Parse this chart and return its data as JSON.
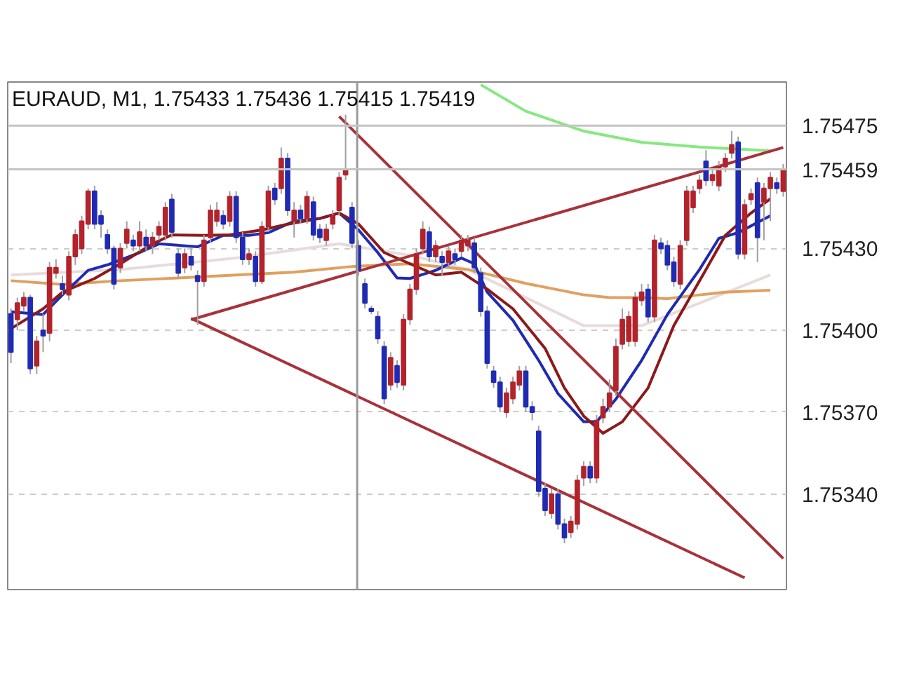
{
  "chart_data": {
    "type": "candlestick",
    "title": "EURAUD, M1, 1.75433 1.75436 1.75415 1.75419",
    "categories": [
      null,
      null,
      null,
      null,
      null,
      null,
      null,
      null,
      null,
      null,
      null,
      null,
      null,
      null,
      null,
      null,
      null,
      null,
      null,
      null,
      null,
      null,
      null,
      null,
      null,
      null,
      null,
      null,
      null,
      null,
      null,
      null,
      null,
      null,
      null,
      null,
      null,
      null,
      null,
      null,
      null,
      null,
      null,
      null,
      null,
      null,
      null,
      null,
      null,
      null,
      null,
      null,
      null,
      null,
      null,
      null,
      null,
      null,
      null,
      null,
      null,
      null,
      null,
      null,
      null,
      null,
      null,
      null,
      null,
      null,
      null,
      null,
      null,
      null,
      null,
      null,
      null,
      null,
      null,
      null,
      null,
      null,
      null,
      null,
      null,
      null,
      null,
      null,
      null,
      null,
      null,
      null,
      null,
      null,
      null,
      null,
      null,
      null,
      null,
      null,
      null,
      null,
      null,
      null,
      null,
      null,
      null,
      null,
      null,
      null,
      null,
      null,
      null,
      null,
      null,
      null,
      null,
      null,
      null,
      null,
      null
    ],
    "ohlc": [
      [
        1.75406,
        1.75408,
        1.75388,
        1.75392
      ],
      [
        1.75404,
        1.75412,
        1.754,
        1.7541
      ],
      [
        1.75409,
        1.75414,
        1.75407,
        1.75412
      ],
      [
        1.75412,
        1.75413,
        1.75384,
        1.75386
      ],
      [
        1.75387,
        1.75398,
        1.75384,
        1.75396
      ],
      [
        1.754,
        1.75406,
        1.75392,
        1.75398
      ],
      [
        1.75399,
        1.75425,
        1.75396,
        1.75423
      ],
      [
        1.75421,
        1.75426,
        1.75419,
        1.75423
      ],
      [
        1.75417,
        1.7542,
        1.75413,
        1.75415
      ],
      [
        1.75413,
        1.75429,
        1.75411,
        1.75427
      ],
      [
        1.75427,
        1.75437,
        1.75424,
        1.75435
      ],
      [
        1.7543,
        1.75442,
        1.75428,
        1.7544
      ],
      [
        1.75439,
        1.75452,
        1.75437,
        1.75451
      ],
      [
        1.75451,
        1.75453,
        1.75437,
        1.75439
      ],
      [
        1.75442,
        1.75444,
        1.75434,
        1.75439
      ],
      [
        1.75435,
        1.75437,
        1.75428,
        1.7543
      ],
      [
        1.7543,
        1.75431,
        1.75415,
        1.75417
      ],
      [
        1.75423,
        1.75432,
        1.75421,
        1.7543
      ],
      [
        1.75432,
        1.7544,
        1.7543,
        1.75437
      ],
      [
        1.75433,
        1.75435,
        1.75429,
        1.75431
      ],
      [
        1.75431,
        1.7544,
        1.75429,
        1.75436
      ],
      [
        1.75434,
        1.75437,
        1.75429,
        1.75431
      ],
      [
        1.75431,
        1.75436,
        1.75428,
        1.75434
      ],
      [
        1.75435,
        1.7544,
        1.75433,
        1.75438
      ],
      [
        1.75435,
        1.75447,
        1.75433,
        1.75445
      ],
      [
        1.75448,
        1.7545,
        1.75434,
        1.75436
      ],
      [
        1.75428,
        1.7543,
        1.75419,
        1.75421
      ],
      [
        1.75423,
        1.7543,
        1.75421,
        1.75428
      ],
      [
        1.75427,
        1.7543,
        1.75422,
        1.75424
      ],
      [
        1.7542,
        1.75422,
        1.75402,
        1.75418
      ],
      [
        1.75418,
        1.75435,
        1.75416,
        1.75433
      ],
      [
        1.75434,
        1.75446,
        1.75432,
        1.75444
      ],
      [
        1.7544,
        1.75447,
        1.75438,
        1.75444
      ],
      [
        1.75442,
        1.75444,
        1.75437,
        1.75439
      ],
      [
        1.7544,
        1.75451,
        1.75438,
        1.75449
      ],
      [
        1.75449,
        1.75451,
        1.75432,
        1.75434
      ],
      [
        1.75434,
        1.75436,
        1.75424,
        1.75426
      ],
      [
        1.75426,
        1.7543,
        1.75424,
        1.75428
      ],
      [
        1.75427,
        1.75429,
        1.75416,
        1.75418
      ],
      [
        1.75418,
        1.7544,
        1.75417,
        1.75438
      ],
      [
        1.75438,
        1.75453,
        1.75436,
        1.75451
      ],
      [
        1.75452,
        1.75454,
        1.75446,
        1.75448
      ],
      [
        1.75452,
        1.75467,
        1.7545,
        1.75463
      ],
      [
        1.75463,
        1.75465,
        1.75442,
        1.75444
      ],
      [
        1.7544,
        1.75447,
        1.75434,
        1.75444
      ],
      [
        1.75444,
        1.75446,
        1.75439,
        1.75441
      ],
      [
        1.75441,
        1.75451,
        1.75439,
        1.75449
      ],
      [
        1.75447,
        1.75449,
        1.75433,
        1.75435
      ],
      [
        1.75437,
        1.75439,
        1.75432,
        1.75434
      ],
      [
        1.75433,
        1.75439,
        1.75431,
        1.75437
      ],
      [
        1.75439,
        1.75444,
        1.75437,
        1.75442
      ],
      [
        1.75444,
        1.75458,
        1.75442,
        1.75456
      ],
      [
        1.75457,
        1.75479,
        1.75455,
        1.75459
      ],
      [
        1.75445,
        1.75447,
        1.7543,
        1.75432
      ],
      [
        1.75431,
        1.75433,
        1.7542,
        1.75422
      ],
      [
        1.75417,
        1.75419,
        1.75408,
        1.7541
      ],
      [
        1.75408,
        1.75409,
        1.75406,
        1.75407
      ],
      [
        1.75405,
        1.75407,
        1.75395,
        1.75397
      ],
      [
        1.75394,
        1.75396,
        1.75373,
        1.75375
      ],
      [
        1.7538,
        1.75392,
        1.75378,
        1.7539
      ],
      [
        1.75387,
        1.75389,
        1.75379,
        1.75381
      ],
      [
        1.7538,
        1.75406,
        1.75378,
        1.75404
      ],
      [
        1.75404,
        1.75417,
        1.75402,
        1.75415
      ],
      [
        1.75415,
        1.7543,
        1.75413,
        1.75428
      ],
      [
        1.7543,
        1.7544,
        1.75428,
        1.75437
      ],
      [
        1.75436,
        1.75438,
        1.75425,
        1.75427
      ],
      [
        1.75427,
        1.75433,
        1.75425,
        1.75431
      ],
      [
        1.75427,
        1.75429,
        1.7542,
        1.75425
      ],
      [
        1.75425,
        1.75431,
        1.75423,
        1.75429
      ],
      [
        1.75428,
        1.7543,
        1.75424,
        1.75426
      ],
      [
        1.75429,
        1.75435,
        1.75427,
        1.75433
      ],
      [
        1.75431,
        1.75435,
        1.75429,
        1.75433
      ],
      [
        1.75432,
        1.75434,
        1.75421,
        1.75423
      ],
      [
        1.75421,
        1.75423,
        1.75405,
        1.75407
      ],
      [
        1.75407,
        1.75409,
        1.75386,
        1.75388
      ],
      [
        1.75385,
        1.75387,
        1.75379,
        1.75381
      ],
      [
        1.75381,
        1.75383,
        1.7537,
        1.75372
      ],
      [
        1.7537,
        1.75379,
        1.75368,
        1.75377
      ],
      [
        1.75375,
        1.75383,
        1.75373,
        1.75381
      ],
      [
        1.7538,
        1.75387,
        1.75378,
        1.75385
      ],
      [
        1.75385,
        1.75387,
        1.7537,
        1.75372
      ],
      [
        1.75372,
        1.75374,
        1.75367,
        1.7537
      ],
      [
        1.75363,
        1.75365,
        1.75339,
        1.75341
      ],
      [
        1.75342,
        1.75344,
        1.75332,
        1.75334
      ],
      [
        1.75333,
        1.75342,
        1.75331,
        1.7534
      ],
      [
        1.7534,
        1.75342,
        1.75327,
        1.75329
      ],
      [
        1.75329,
        1.75331,
        1.75322,
        1.75324
      ],
      [
        1.75326,
        1.75332,
        1.75324,
        1.7533
      ],
      [
        1.75329,
        1.75347,
        1.75327,
        1.75345
      ],
      [
        1.75346,
        1.75352,
        1.75343,
        1.7535
      ],
      [
        1.7535,
        1.75352,
        1.75344,
        1.75346
      ],
      [
        1.75346,
        1.75369,
        1.75344,
        1.75367
      ],
      [
        1.75368,
        1.75375,
        1.75366,
        1.75372
      ],
      [
        1.75372,
        1.75382,
        1.7537,
        1.75377
      ],
      [
        1.75378,
        1.75397,
        1.75376,
        1.75394
      ],
      [
        1.75395,
        1.75408,
        1.75393,
        1.75404
      ],
      [
        1.75396,
        1.75407,
        1.75394,
        1.75405
      ],
      [
        1.75396,
        1.75414,
        1.75394,
        1.75412
      ],
      [
        1.75411,
        1.75417,
        1.75409,
        1.75414
      ],
      [
        1.75415,
        1.75417,
        1.75403,
        1.75405
      ],
      [
        1.75405,
        1.75435,
        1.75403,
        1.75433
      ],
      [
        1.75432,
        1.75434,
        1.75428,
        1.7543
      ],
      [
        1.75431,
        1.75433,
        1.75422,
        1.75424
      ],
      [
        1.75425,
        1.75427,
        1.75416,
        1.75418
      ],
      [
        1.75417,
        1.75433,
        1.75415,
        1.75431
      ],
      [
        1.75433,
        1.75453,
        1.75431,
        1.75451
      ],
      [
        1.75445,
        1.75453,
        1.75443,
        1.75451
      ],
      [
        1.75452,
        1.75457,
        1.7545,
        1.75455
      ],
      [
        1.75462,
        1.75466,
        1.75453,
        1.75455
      ],
      [
        1.75455,
        1.75459,
        1.75453,
        1.75457
      ],
      [
        1.75453,
        1.75462,
        1.75451,
        1.7546
      ],
      [
        1.7546,
        1.75465,
        1.75458,
        1.75463
      ],
      [
        1.75465,
        1.75473,
        1.75463,
        1.75468
      ],
      [
        1.75469,
        1.75471,
        1.75426,
        1.75428
      ],
      [
        1.75428,
        1.75448,
        1.75426,
        1.75446
      ],
      [
        1.75448,
        1.75452,
        1.75446,
        1.7545
      ],
      [
        1.75454,
        1.75456,
        1.75425,
        1.75434
      ],
      [
        1.75447,
        1.75454,
        1.75433,
        1.75452
      ],
      [
        1.75452,
        1.75458,
        1.7544,
        1.75456
      ],
      [
        1.75454,
        1.75456,
        1.7545,
        1.75452
      ],
      [
        1.75451,
        1.75461,
        1.75449,
        1.75459
      ]
    ],
    "colors": [
      "#1f2bb3",
      "#b3232b",
      "#b3232b",
      "#1f2bb3",
      "#b3232b",
      "#1f2bb3",
      "#b3232b",
      "#b3232b",
      "#1f2bb3",
      "#b3232b",
      "#b3232b",
      "#b3232b",
      "#b3232b",
      "#1f2bb3",
      "#1f2bb3",
      "#1f2bb3",
      "#1f2bb3",
      "#b3232b",
      "#b3232b",
      "#1f2bb3",
      "#b3232b",
      "#1f2bb3",
      "#b3232b",
      "#b3232b",
      "#b3232b",
      "#1f2bb3",
      "#1f2bb3",
      "#b3232b",
      "#1f2bb3",
      "#1f2bb3",
      "#b3232b",
      "#b3232b",
      "#b3232b",
      "#1f2bb3",
      "#b3232b",
      "#1f2bb3",
      "#1f2bb3",
      "#b3232b",
      "#1f2bb3",
      "#b3232b",
      "#b3232b",
      "#1f2bb3",
      "#b3232b",
      "#1f2bb3",
      "#b3232b",
      "#1f2bb3",
      "#b3232b",
      "#1f2bb3",
      "#1f2bb3",
      "#b3232b",
      "#b3232b",
      "#b3232b",
      "#b3232b",
      "#1f2bb3",
      "#1f2bb3",
      "#1f2bb3",
      "#1f2bb3",
      "#1f2bb3",
      "#1f2bb3",
      "#b3232b",
      "#1f2bb3",
      "#b3232b",
      "#b3232b",
      "#b3232b",
      "#b3232b",
      "#1f2bb3",
      "#b3232b",
      "#1f2bb3",
      "#b3232b",
      "#1f2bb3",
      "#b3232b",
      "#b3232b",
      "#1f2bb3",
      "#1f2bb3",
      "#1f2bb3",
      "#1f2bb3",
      "#1f2bb3",
      "#b3232b",
      "#b3232b",
      "#b3232b",
      "#1f2bb3",
      "#1f2bb3",
      "#1f2bb3",
      "#1f2bb3",
      "#b3232b",
      "#1f2bb3",
      "#1f2bb3",
      "#b3232b",
      "#b3232b",
      "#b3232b",
      "#1f2bb3",
      "#b3232b",
      "#b3232b",
      "#b3232b",
      "#b3232b",
      "#b3232b",
      "#b3232b",
      "#b3232b",
      "#b3232b",
      "#1f2bb3",
      "#b3232b",
      "#1f2bb3",
      "#1f2bb3",
      "#1f2bb3",
      "#b3232b",
      "#b3232b",
      "#b3232b",
      "#b3232b",
      "#1f2bb3",
      "#b3232b",
      "#b3232b",
      "#b3232b",
      "#b3232b",
      "#1f2bb3",
      "#b3232b",
      "#b3232b",
      "#1f2bb3",
      "#b3232b",
      "#b3232b",
      "#1f2bb3",
      "#b3232b"
    ],
    "series": [
      {
        "type": "line",
        "color": "#87e87f",
        "values": [
          null,
          null,
          null,
          null,
          null,
          null,
          null,
          null,
          null,
          null,
          null,
          null,
          null,
          null,
          null,
          null,
          null,
          null,
          null,
          null,
          null,
          null,
          null,
          null,
          null,
          null,
          null,
          null,
          null,
          null,
          null,
          null,
          null,
          null,
          null,
          null,
          null,
          null,
          null,
          null,
          null,
          null,
          null,
          null,
          null,
          null,
          null,
          null,
          null,
          null,
          null,
          null,
          null,
          null,
          null,
          null,
          null,
          null,
          null,
          null,
          null,
          null,
          null,
          null,
          null,
          null,
          null,
          null,
          null,
          null,
          null,
          null,
          null,
          1.7549,
          null,
          null,
          null,
          null,
          null,
          null,
          1.754803,
          null,
          null,
          null,
          null,
          null,
          null,
          null,
          null,
          1.75473,
          null,
          null,
          null,
          null,
          null,
          null,
          null,
          null,
          1.754689,
          null,
          null,
          null,
          null,
          null,
          null,
          null,
          null,
          1.754672,
          null,
          null,
          null,
          null,
          null,
          null,
          null,
          null,
          null,
          null,
          1.754658,
          null,
          null
        ]
      },
      {
        "type": "line",
        "color": "#e6dcdc",
        "values": [
          1.754203,
          null,
          null,
          null,
          null,
          null,
          null,
          null,
          null,
          null,
          null,
          null,
          null,
          null,
          null,
          null,
          null,
          1.754223,
          null,
          null,
          null,
          null,
          null,
          null,
          null,
          null,
          null,
          null,
          null,
          null,
          null,
          null,
          null,
          null,
          null,
          1.754265,
          null,
          null,
          null,
          null,
          null,
          null,
          null,
          null,
          null,
          null,
          null,
          null,
          null,
          null,
          null,
          1.754317,
          null,
          null,
          null,
          null,
          null,
          null,
          null,
          null,
          null,
          null,
          1.754275,
          null,
          null,
          null,
          null,
          null,
          null,
          null,
          null,
          1.754223,
          null,
          null,
          null,
          null,
          null,
          null,
          null,
          null,
          1.75412,
          null,
          null,
          null,
          null,
          null,
          null,
          null,
          null,
          1.754017,
          null,
          null,
          null,
          null,
          null,
          null,
          null,
          null,
          1.754017,
          null,
          null,
          null,
          null,
          null,
          null,
          null,
          null,
          1.7541,
          null,
          null,
          null,
          null,
          null,
          null,
          null,
          null,
          null,
          null,
          1.754203,
          null,
          null
        ]
      },
      {
        "type": "line",
        "color": "#e0a060",
        "values": [
          1.754182,
          null,
          null,
          null,
          null,
          null,
          null,
          null,
          1.754168,
          null,
          null,
          null,
          null,
          null,
          null,
          null,
          null,
          1.754182,
          null,
          null,
          null,
          null,
          null,
          null,
          null,
          null,
          1.754192,
          null,
          null,
          null,
          null,
          null,
          null,
          null,
          null,
          1.754203,
          null,
          null,
          null,
          null,
          null,
          null,
          null,
          null,
          1.754213,
          null,
          null,
          null,
          null,
          null,
          null,
          null,
          null,
          1.754234,
          null,
          null,
          null,
          null,
          null,
          null,
          null,
          null,
          1.754244,
          null,
          null,
          null,
          null,
          null,
          null,
          null,
          null,
          1.754223,
          null,
          null,
          null,
          null,
          null,
          null,
          null,
          null,
          1.754172,
          null,
          null,
          null,
          null,
          null,
          null,
          null,
          null,
          1.75413,
          null,
          null,
          null,
          1.75412,
          null,
          null,
          null,
          null,
          1.75412,
          null,
          null,
          null,
          1.754116,
          null,
          null,
          null,
          null,
          1.75413,
          null,
          null,
          null,
          1.75414,
          null,
          null,
          null,
          null,
          null,
          null,
          1.754147,
          null,
          null
        ]
      },
      {
        "type": "line",
        "color": "#1f2bb3",
        "values": [
          1.754068,
          null,
          null,
          null,
          null,
          1.754058,
          null,
          null,
          1.75413,
          null,
          null,
          null,
          1.75422,
          null,
          null,
          1.75424,
          null,
          null,
          null,
          null,
          1.754285,
          null,
          null,
          1.754317,
          null,
          null,
          null,
          null,
          null,
          1.754306,
          null,
          null,
          null,
          1.754348,
          null,
          null,
          null,
          1.754348,
          null,
          null,
          1.754358,
          null,
          null,
          null,
          1.7544,
          null,
          null,
          null,
          1.75441,
          null,
          null,
          1.75443,
          null,
          null,
          1.754368,
          null,
          null,
          1.754285,
          null,
          null,
          1.754192,
          null,
          1.75419,
          null,
          null,
          null,
          1.75422,
          null,
          null,
          null,
          1.754265,
          null,
          1.754244,
          null,
          1.75414,
          null,
          null,
          null,
          1.754037,
          null,
          null,
          null,
          1.75389,
          null,
          null,
          1.753768,
          null,
          null,
          null,
          1.753665,
          null,
          1.753665,
          null,
          null,
          1.753748,
          null,
          null,
          null,
          1.75389,
          null,
          null,
          null,
          1.754058,
          null,
          null,
          null,
          null,
          1.754223,
          null,
          null,
          1.754337,
          null,
          null,
          1.754358,
          null,
          null,
          null,
          null,
          1.75442,
          null,
          null
        ]
      },
      {
        "type": "line",
        "color": "#8b1a1a",
        "values": [
          1.754006,
          null,
          null,
          null,
          null,
          1.754079,
          null,
          null,
          1.75414,
          null,
          null,
          null,
          null,
          1.75419,
          null,
          null,
          null,
          1.754244,
          null,
          null,
          null,
          null,
          1.754317,
          null,
          null,
          1.75435,
          null,
          null,
          null,
          null,
          1.754348,
          null,
          null,
          null,
          1.75435,
          null,
          null,
          null,
          null,
          1.754368,
          null,
          null,
          null,
          1.754389,
          null,
          null,
          null,
          null,
          1.75441,
          null,
          null,
          1.75443,
          null,
          null,
          1.75439,
          null,
          null,
          null,
          1.754285,
          null,
          null,
          null,
          1.754244,
          null,
          null,
          null,
          1.754203,
          null,
          null,
          null,
          1.754213,
          null,
          null,
          null,
          1.754151,
          null,
          null,
          null,
          1.754079,
          null,
          null,
          null,
          null,
          1.753934,
          null,
          null,
          1.753789,
          null,
          null,
          1.753686,
          null,
          null,
          1.753623,
          null,
          null,
          1.753665,
          null,
          null,
          null,
          1.753789,
          null,
          null,
          null,
          1.754017,
          null,
          null,
          null,
          null,
          1.754223,
          null,
          null,
          1.754348,
          null,
          null,
          null,
          1.75443,
          null,
          null,
          1.754482,
          null,
          null
        ]
      },
      {
        "type": "line",
        "color": "#a8323a",
        "values": [
          null,
          null,
          null,
          null,
          null,
          null,
          null,
          null,
          null,
          null,
          null,
          null,
          null,
          null,
          null,
          null,
          null,
          null,
          null,
          null,
          null,
          null,
          null,
          null,
          null,
          null,
          null,
          null,
          1.754039,
          null,
          null,
          null,
          null,
          null,
          null,
          null,
          null,
          null,
          null,
          null,
          null,
          null,
          null,
          null,
          null,
          null,
          null,
          null,
          null,
          null,
          null,
          null,
          null,
          null,
          null,
          null,
          null,
          null,
          null,
          null,
          null,
          null,
          null,
          null,
          null,
          null,
          null,
          null,
          null,
          null,
          null,
          null,
          null,
          null,
          null,
          null,
          null,
          null,
          null,
          null,
          null,
          null,
          null,
          null,
          null,
          null,
          null,
          null,
          null,
          null,
          null,
          null,
          null,
          null,
          null,
          null,
          null,
          null,
          null,
          null,
          null,
          null,
          null,
          null,
          null,
          null,
          null,
          null,
          null,
          null,
          null,
          null,
          null,
          null,
          null,
          null,
          null,
          null,
          null,
          null,
          1.75467
        ]
      },
      {
        "type": "line",
        "color": "#a8323a",
        "values": [
          null,
          null,
          null,
          null,
          null,
          null,
          null,
          null,
          null,
          null,
          null,
          null,
          null,
          null,
          null,
          null,
          null,
          null,
          null,
          null,
          null,
          null,
          null,
          null,
          null,
          null,
          null,
          null,
          1.754044,
          null,
          null,
          null,
          null,
          null,
          null,
          null,
          null,
          null,
          null,
          null,
          null,
          null,
          null,
          null,
          null,
          null,
          null,
          null,
          null,
          null,
          null,
          null,
          null,
          null,
          null,
          null,
          null,
          null,
          null,
          null,
          null,
          null,
          null,
          null,
          null,
          null,
          null,
          null,
          null,
          null,
          null,
          null,
          null,
          null,
          null,
          null,
          null,
          null,
          null,
          null,
          null,
          null,
          null,
          null,
          null,
          null,
          null,
          null,
          null,
          null,
          null,
          null,
          null,
          null,
          null,
          null,
          null,
          null,
          null,
          null,
          null,
          null,
          null,
          null,
          null,
          null,
          null,
          null,
          null,
          null,
          null,
          null,
          null,
          null,
          1.753093,
          null,
          null,
          null,
          null,
          null,
          null
        ]
      },
      {
        "type": "line",
        "color": "#a8323a",
        "values": [
          null,
          null,
          null,
          null,
          null,
          null,
          null,
          null,
          null,
          null,
          null,
          null,
          null,
          null,
          null,
          null,
          null,
          null,
          null,
          null,
          null,
          null,
          null,
          null,
          null,
          null,
          null,
          null,
          null,
          null,
          null,
          null,
          null,
          null,
          null,
          null,
          null,
          null,
          null,
          null,
          null,
          null,
          null,
          null,
          null,
          null,
          null,
          null,
          null,
          null,
          null,
          1.754784,
          null,
          null,
          null,
          null,
          null,
          null,
          null,
          null,
          null,
          null,
          null,
          null,
          null,
          null,
          null,
          null,
          null,
          null,
          null,
          null,
          null,
          null,
          null,
          null,
          null,
          null,
          null,
          null,
          null,
          null,
          null,
          null,
          null,
          null,
          null,
          null,
          null,
          null,
          null,
          null,
          null,
          null,
          null,
          null,
          null,
          null,
          null,
          null,
          null,
          null,
          null,
          null,
          null,
          null,
          null,
          null,
          null,
          null,
          null,
          null,
          null,
          null,
          null,
          null,
          null,
          null,
          null,
          null,
          1.753164
        ]
      }
    ],
    "ylim": [
      1.75305,
      1.75491
    ],
    "yticks": [
      {
        "value": 1.7534,
        "label": "1.75340"
      },
      {
        "value": 1.7537,
        "label": "1.75370"
      },
      {
        "value": 1.754,
        "label": "1.75400"
      },
      {
        "value": 1.7543,
        "label": "1.75430"
      }
    ],
    "ref_lines": [
      {
        "axis": "y",
        "value": 1.75475,
        "label": "1.75475",
        "color": "#c4c4c4"
      },
      {
        "axis": "y",
        "value": 1.75459,
        "label": "1.75459",
        "color": "#c4c4c4"
      }
    ],
    "grid": "y",
    "tick_labels": "y"
  }
}
